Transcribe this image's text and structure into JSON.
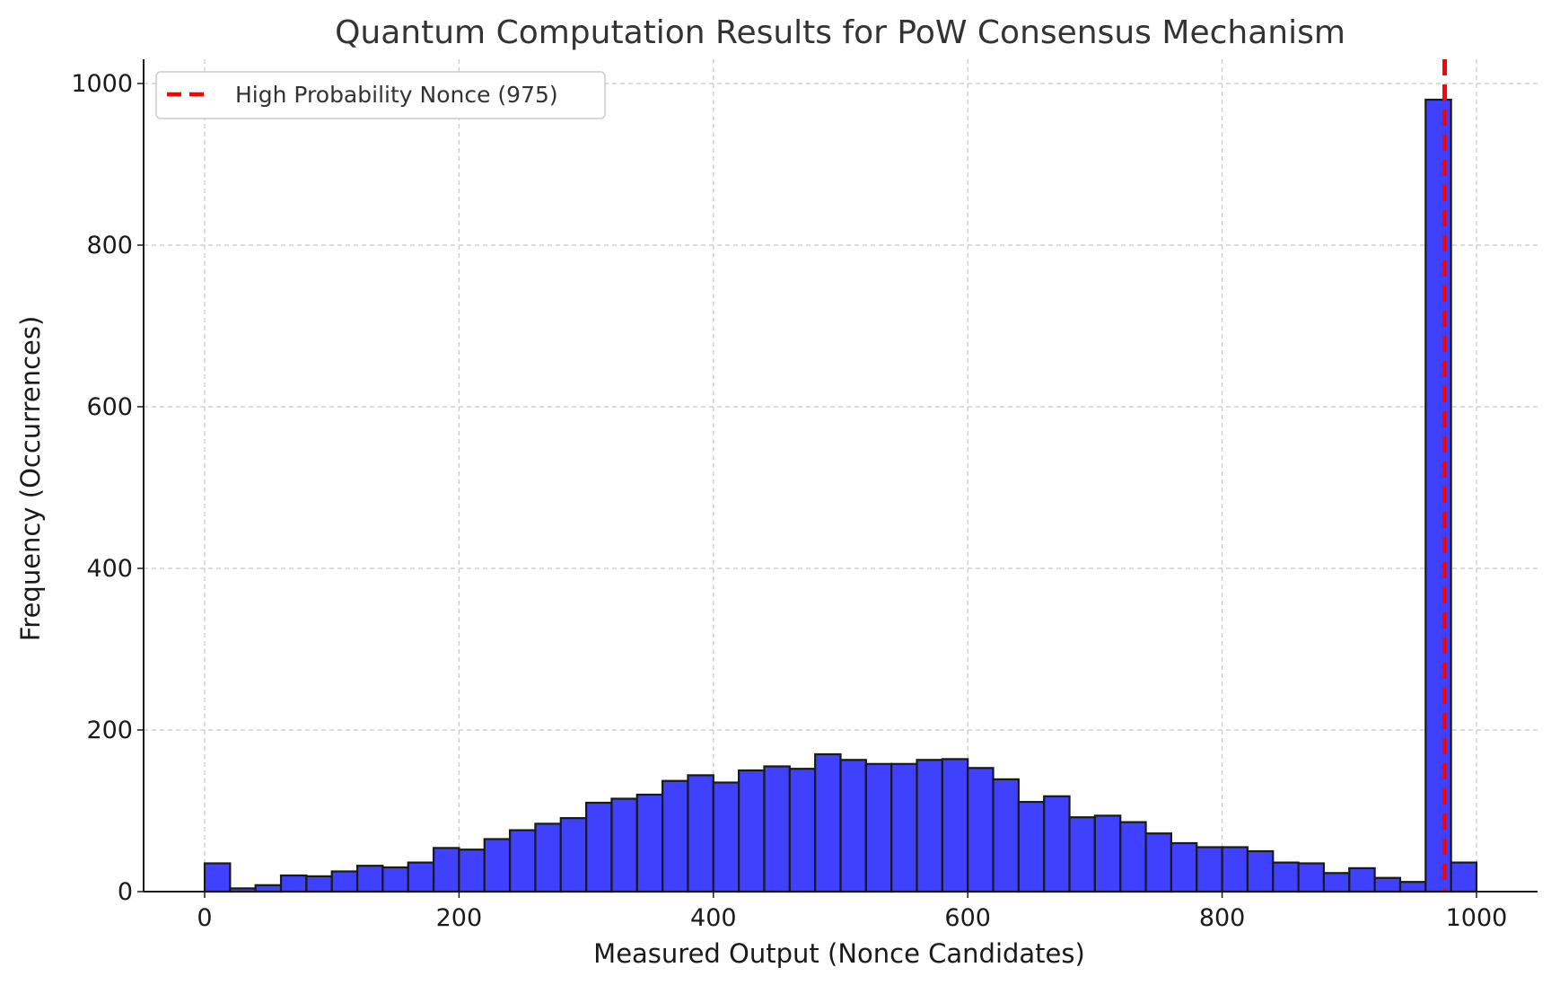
{
  "chart_data": {
    "type": "bar",
    "title": "Quantum Computation Results for PoW Consensus Mechanism",
    "xlabel": "Measured Output (Nonce Candidates)",
    "ylabel": "Frequency (Occurrences)",
    "xlim": [
      -48,
      1048
    ],
    "ylim": [
      0,
      1030
    ],
    "xticks": [
      0,
      200,
      400,
      600,
      800,
      1000
    ],
    "yticks": [
      0,
      200,
      400,
      600,
      800,
      1000
    ],
    "grid": true,
    "bin_width": 20,
    "bin_start": 0,
    "values": [
      35,
      4,
      8,
      20,
      19,
      25,
      32,
      30,
      36,
      54,
      52,
      65,
      76,
      84,
      91,
      110,
      115,
      120,
      137,
      144,
      135,
      150,
      155,
      152,
      170,
      163,
      158,
      158,
      163,
      164,
      153,
      139,
      111,
      118,
      92,
      94,
      86,
      72,
      60,
      55,
      55,
      50,
      36,
      35,
      23,
      29,
      17,
      12,
      980,
      36
    ],
    "bar_color": "#4040ff",
    "reference_line": {
      "x": 975,
      "color": "#ff0000",
      "style": "dashed"
    },
    "legend": {
      "position": "top-left",
      "entries": [
        {
          "label": "High Probability Nonce (975)",
          "color": "#ff0000",
          "style": "dashed"
        }
      ]
    }
  }
}
